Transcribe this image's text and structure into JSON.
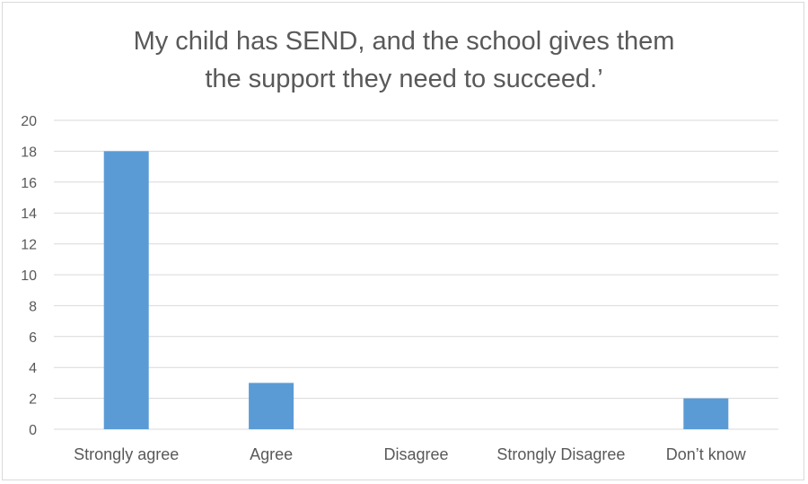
{
  "chart_data": {
    "type": "bar",
    "title_lines": [
      "My child has SEND, and the school gives them",
      "the support they need to succeed.’"
    ],
    "categories": [
      "Strongly agree",
      "Agree",
      "Disagree",
      "Strongly Disagree",
      "Don’t know"
    ],
    "values": [
      18,
      3,
      0,
      0,
      2
    ],
    "ylim": [
      0,
      20
    ],
    "ytick_step": 2,
    "grid": true,
    "bar_color": "#5b9bd5",
    "grid_color": "#d9d9d9",
    "legend": "none"
  }
}
